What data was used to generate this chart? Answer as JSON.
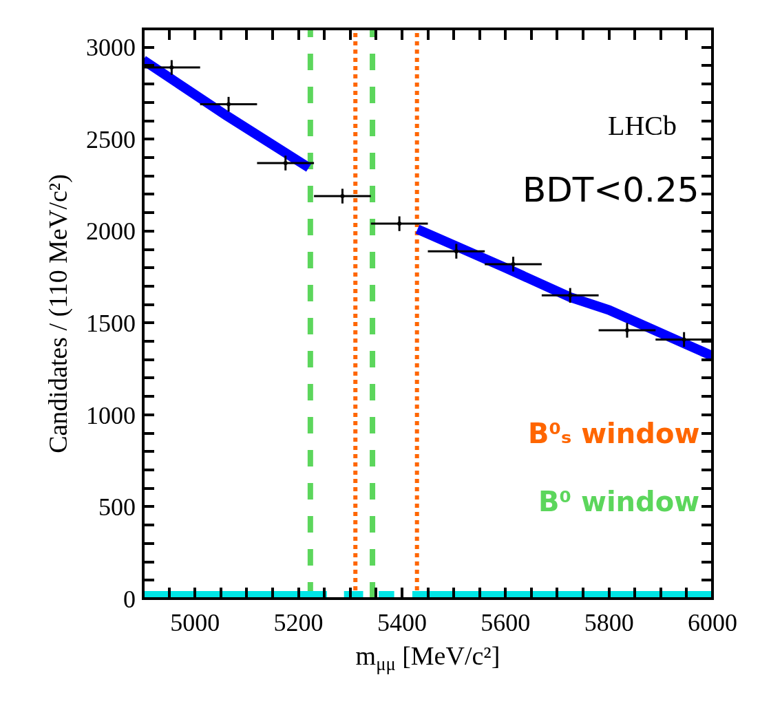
{
  "chart_data": {
    "type": "scatter",
    "xlabel": "m$_{μμ}$ [MeV/c²]",
    "ylabel": "Candidates / (110 MeV/c²)",
    "xlim": [
      4900,
      6000
    ],
    "xticks": [
      {
        "value": 4950,
        "label": null
      },
      5000,
      {
        "value": 5050,
        "label": null
      },
      {
        "value": 5100,
        "label": null
      },
      {
        "value": 5150,
        "label": null
      },
      5200,
      {
        "value": 5250,
        "label": null
      },
      {
        "value": 5300,
        "label": null
      },
      {
        "value": 5350,
        "label": null
      },
      5400,
      {
        "value": 5450,
        "label": null
      },
      {
        "value": 5500,
        "label": null
      },
      {
        "value": 5550,
        "label": null
      },
      5600,
      {
        "value": 5650,
        "label": null
      },
      {
        "value": 5700,
        "label": null
      },
      {
        "value": 5750,
        "label": null
      },
      5800,
      {
        "value": 5850,
        "label": null
      },
      {
        "value": 5900,
        "label": null
      },
      {
        "value": 5950,
        "label": null
      },
      6000
    ],
    "ylim": [
      0,
      3100
    ],
    "yticks": [
      0,
      {
        "value": 100,
        "label": null
      },
      {
        "value": 200,
        "label": null
      },
      {
        "value": 300,
        "label": null
      },
      {
        "value": 400,
        "label": null
      },
      500,
      {
        "value": 600,
        "label": null
      },
      {
        "value": 700,
        "label": null
      },
      {
        "value": 800,
        "label": null
      },
      {
        "value": 900,
        "label": null
      },
      1000,
      {
        "value": 1100,
        "label": null
      },
      {
        "value": 1200,
        "label": null
      },
      {
        "value": 1300,
        "label": null
      },
      {
        "value": 1400,
        "label": null
      },
      1500,
      {
        "value": 1600,
        "label": null
      },
      {
        "value": 1700,
        "label": null
      },
      {
        "value": 1800,
        "label": null
      },
      {
        "value": 1900,
        "label": null
      },
      2000,
      {
        "value": 2100,
        "label": null
      },
      {
        "value": 2200,
        "label": null
      },
      {
        "value": 2300,
        "label": null
      },
      {
        "value": 2400,
        "label": null
      },
      2500,
      {
        "value": 2600,
        "label": null
      },
      {
        "value": 2700,
        "label": null
      },
      {
        "value": 2800,
        "label": null
      },
      {
        "value": 2900,
        "label": null
      },
      3000,
      {
        "value": 3100,
        "label": null
      }
    ],
    "grid": false,
    "series": [
      {
        "type": "line",
        "color": "#0000ff",
        "x": [
          4900,
          5060,
          5220
        ],
        "values": [
          2930,
          2630,
          2345
        ]
      },
      {
        "type": "line",
        "color": "#0000ff",
        "x": [
          5430,
          5600,
          5725,
          5800,
          6000
        ],
        "values": [
          2010,
          1800,
          1640,
          1570,
          1320
        ]
      },
      {
        "type": "line",
        "color": "#00e5e5",
        "x": [
          4900,
          5255,
          5256,
          5288,
          5325,
          5326,
          5355,
          5385,
          5386,
          5420,
          6000
        ],
        "values": [
          15,
          15,
          null,
          15,
          15,
          null,
          15,
          15,
          null,
          15,
          15
        ]
      },
      {
        "color": "#000000",
        "x": [
          4955,
          5065,
          5175,
          5285,
          5395,
          5505,
          5615,
          5725,
          5835,
          5945
        ],
        "values": [
          2890,
          2690,
          2370,
          2190,
          2040,
          1890,
          1820,
          1650,
          1460,
          1410
        ],
        "errors": [
          40,
          40,
          40,
          40,
          40,
          40,
          40,
          40,
          40,
          40
        ],
        "xerrors": [
          55,
          55,
          55,
          55,
          55,
          55,
          55,
          55,
          55,
          55
        ]
      }
    ],
    "ref_lines": [
      {
        "axis": "x",
        "value": 5223,
        "color": "#5cd65c",
        "line_style": "dashed",
        "label": "B⁰ window"
      },
      {
        "axis": "x",
        "value": 5343,
        "color": "#5cd65c",
        "line_style": "dashed",
        "label": null
      },
      {
        "axis": "x",
        "value": 5310,
        "color": "#ff6600",
        "line_style": "dotted",
        "label": "B⁰ₛ window"
      },
      {
        "axis": "x",
        "value": 5429,
        "color": "#ff6600",
        "line_style": "dotted",
        "label": null
      }
    ],
    "annotations": [
      "LHCb",
      "BDT<0.25"
    ]
  }
}
